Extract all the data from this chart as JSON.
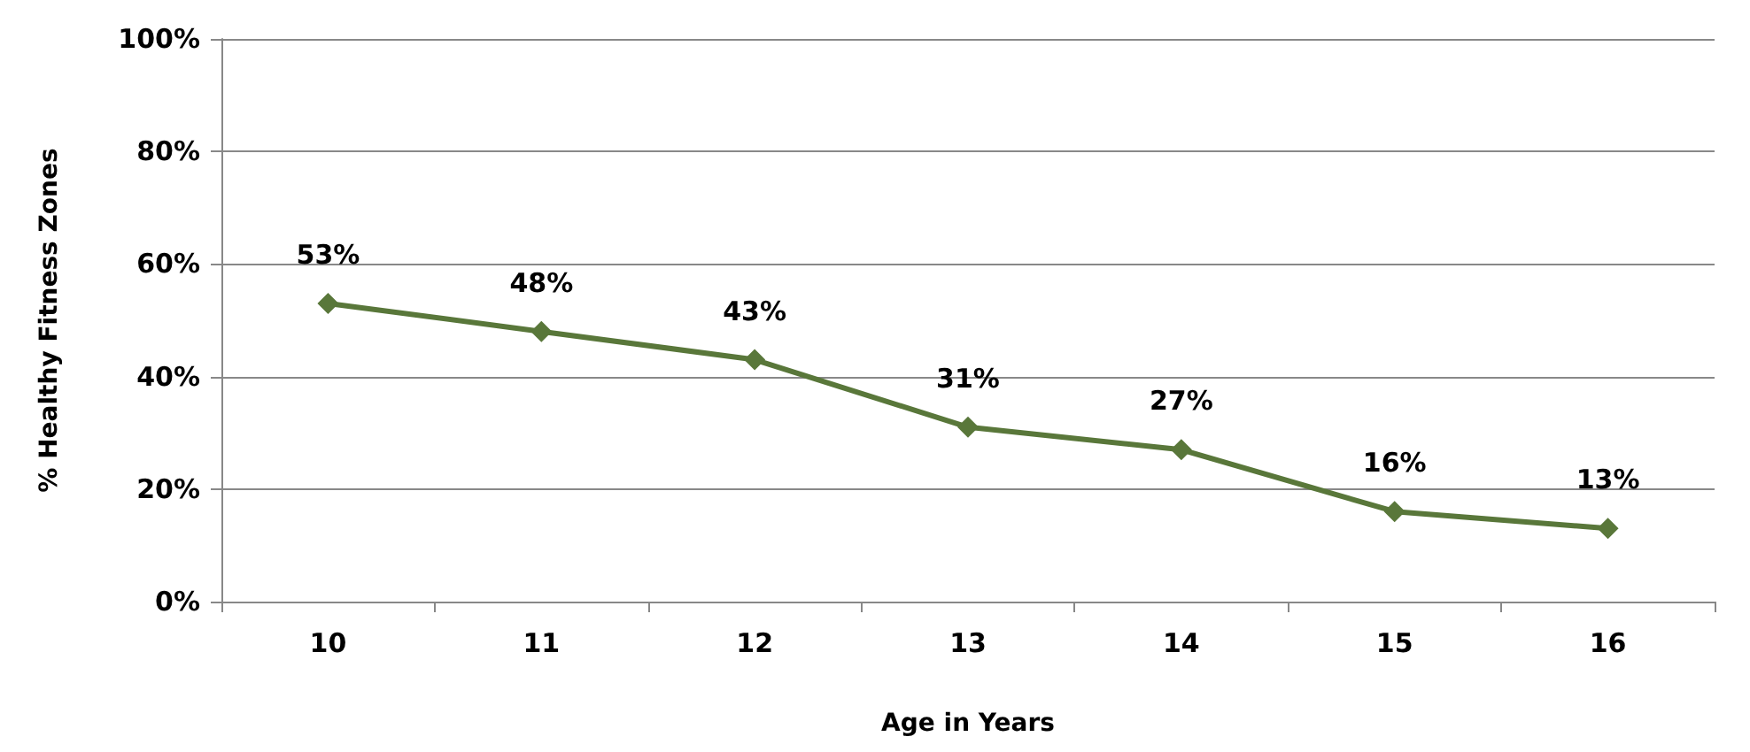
{
  "chart_data": {
    "type": "line",
    "xlabel": "Age in Years",
    "ylabel": "% Healthy Fitness Zones",
    "categories": [
      "10",
      "11",
      "12",
      "13",
      "14",
      "15",
      "16"
    ],
    "series": [
      {
        "color": "#59773a",
        "values": [
          53,
          48,
          43,
          31,
          27,
          16,
          13
        ],
        "value_labels": [
          "53%",
          "48%",
          "43%",
          "31%",
          "27%",
          "16%",
          "13%"
        ]
      }
    ],
    "ylim": [
      0,
      100
    ],
    "yticks": [
      {
        "value": 0,
        "label": "0%"
      },
      {
        "value": 20,
        "label": "20%"
      },
      {
        "value": 40,
        "label": "40%"
      },
      {
        "value": 60,
        "label": "60%"
      },
      {
        "value": 80,
        "label": "80%"
      },
      {
        "value": 100,
        "label": "100%"
      }
    ],
    "grid": "y",
    "marker": "diamond",
    "line_style": "solid"
  }
}
